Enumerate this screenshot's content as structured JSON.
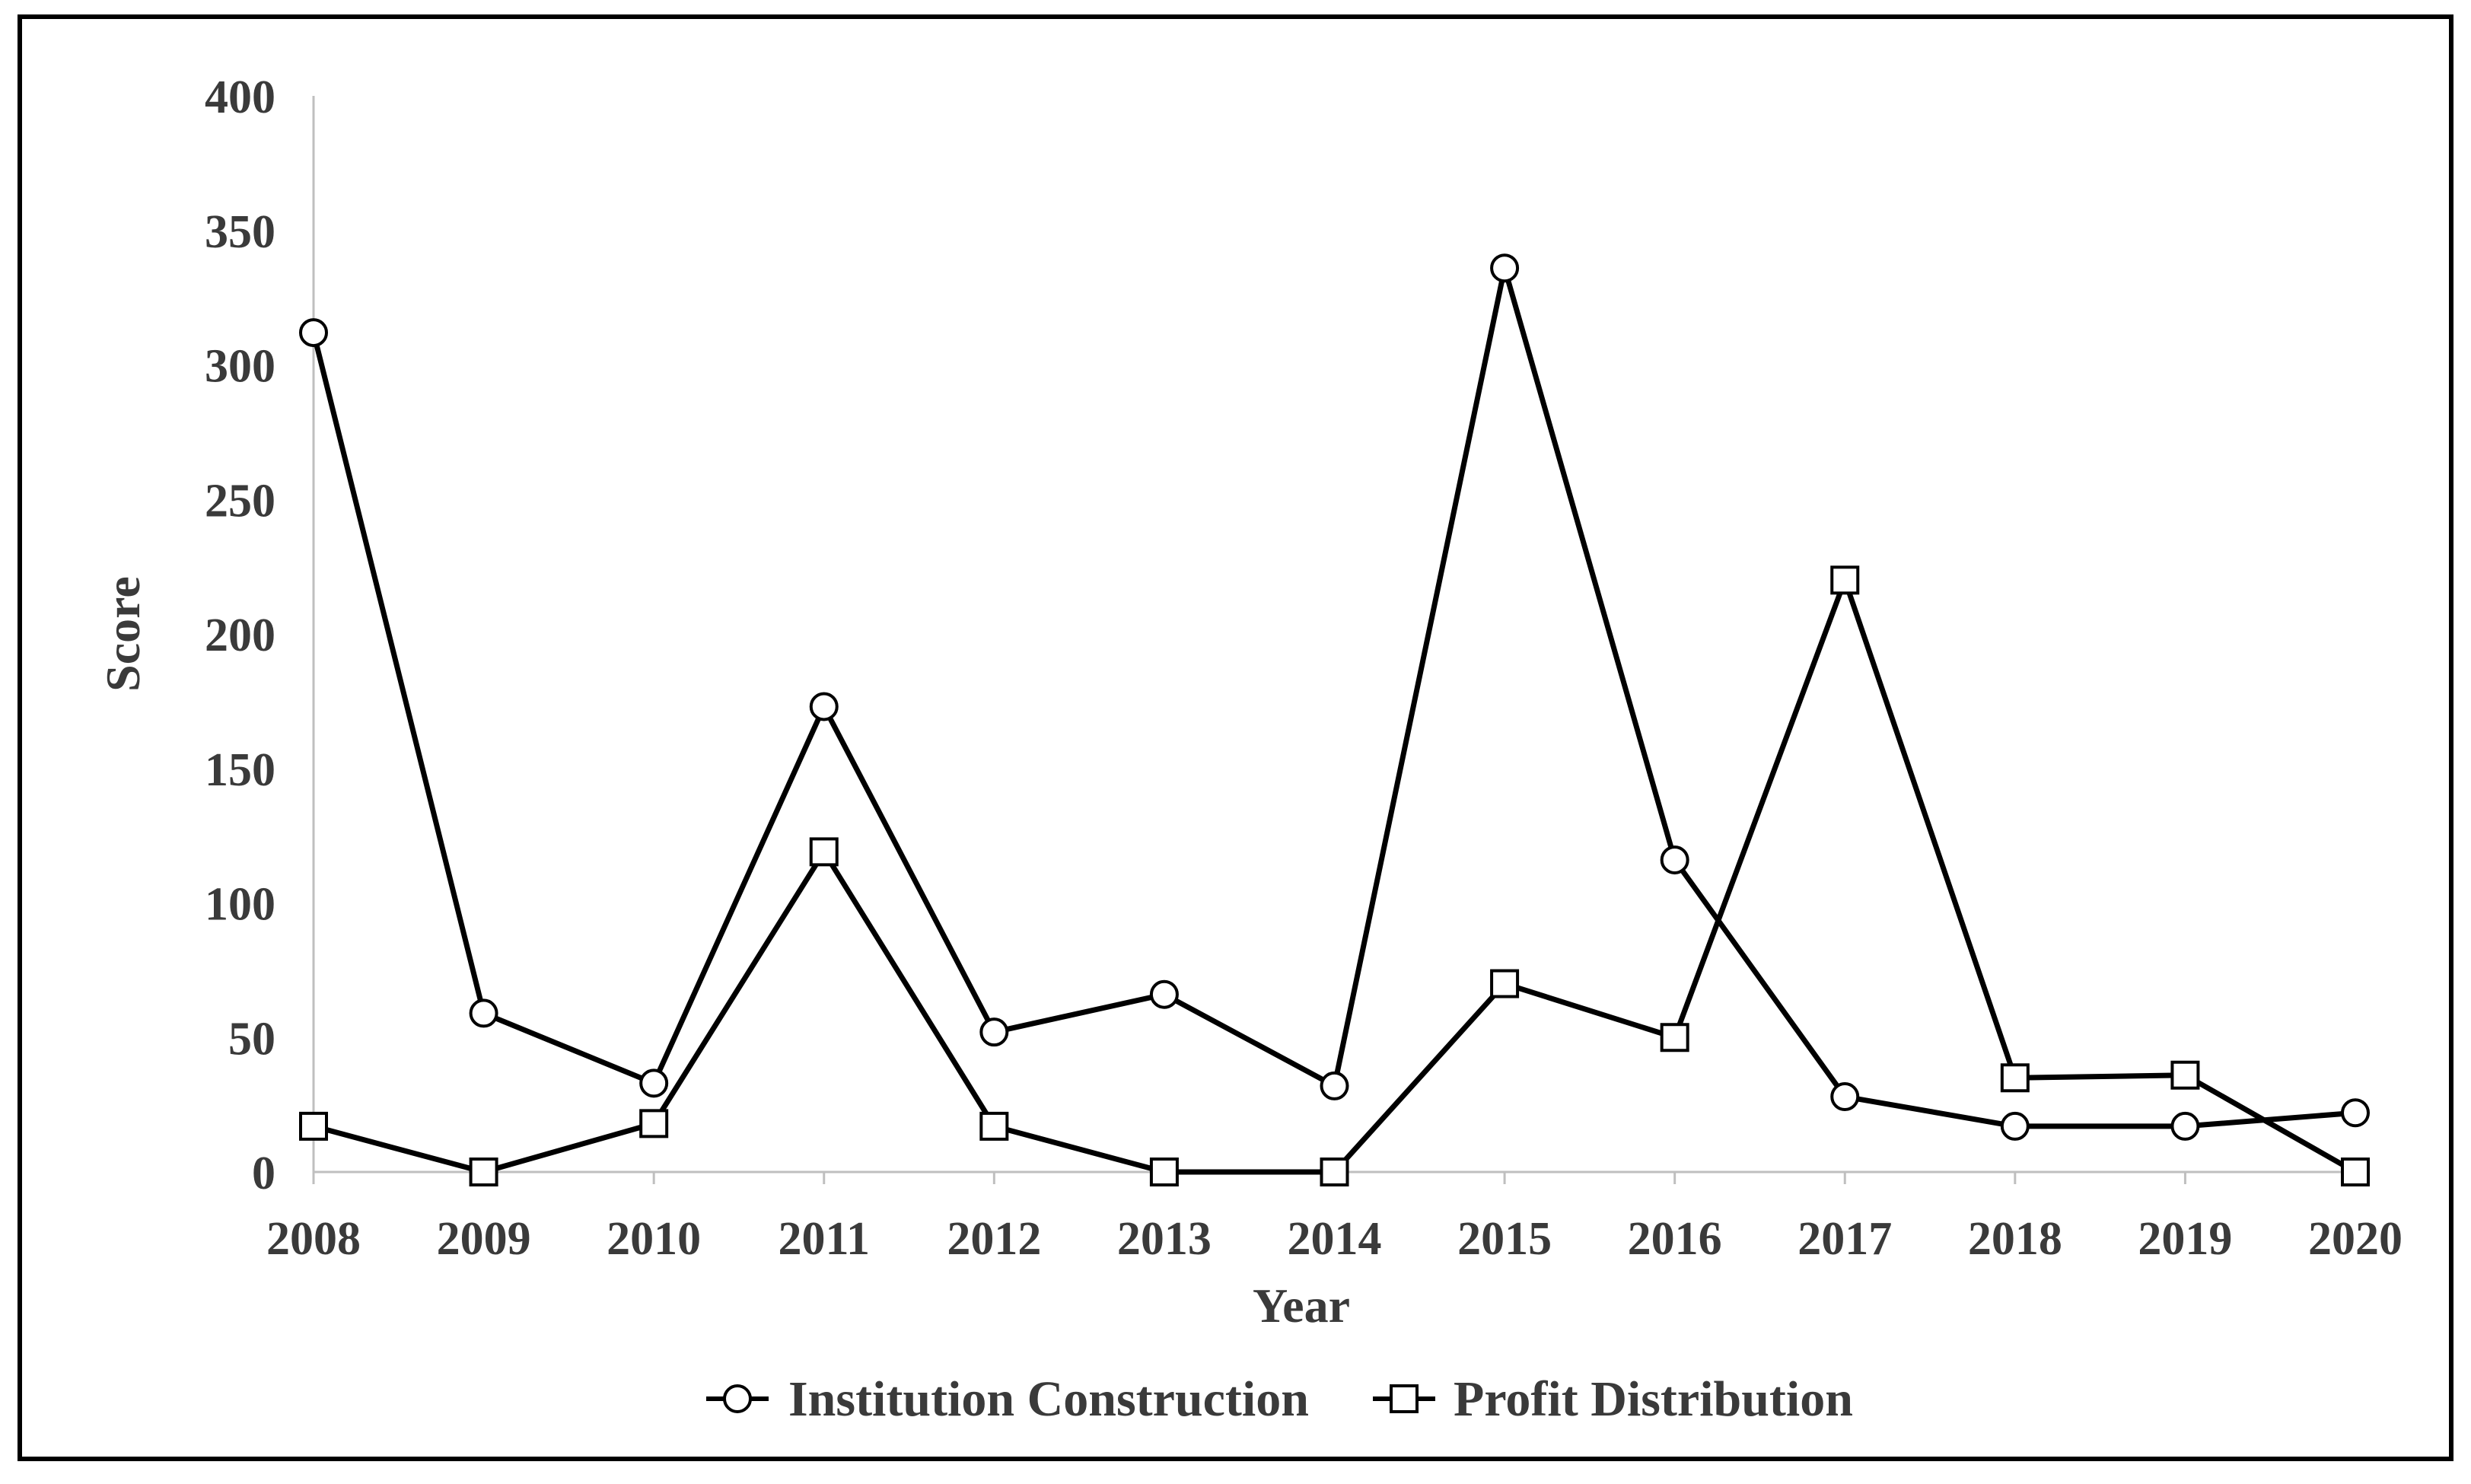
{
  "chart_data": {
    "type": "line",
    "title": "",
    "xlabel": "Year",
    "ylabel": "Score",
    "categories": [
      "2008",
      "2009",
      "2010",
      "2011",
      "2012",
      "2013",
      "2014",
      "2015",
      "2016",
      "2017",
      "2018",
      "2019",
      "2020"
    ],
    "ylim": [
      0,
      400
    ],
    "yticks": [
      "0",
      "50",
      "100",
      "150",
      "200",
      "250",
      "300",
      "350",
      "400"
    ],
    "grid": false,
    "legend_position": "bottom",
    "series": [
      {
        "name": "Institution Construction",
        "marker": "circle",
        "color": "#000000",
        "values": [
          312,
          59,
          33,
          173,
          52,
          66,
          32,
          336,
          116,
          28,
          17,
          17,
          22
        ]
      },
      {
        "name": "Profit Distribution",
        "marker": "square",
        "color": "#000000",
        "values": [
          17,
          0,
          18,
          119,
          17,
          0,
          0,
          70,
          50,
          220,
          35,
          36,
          0
        ]
      }
    ]
  }
}
